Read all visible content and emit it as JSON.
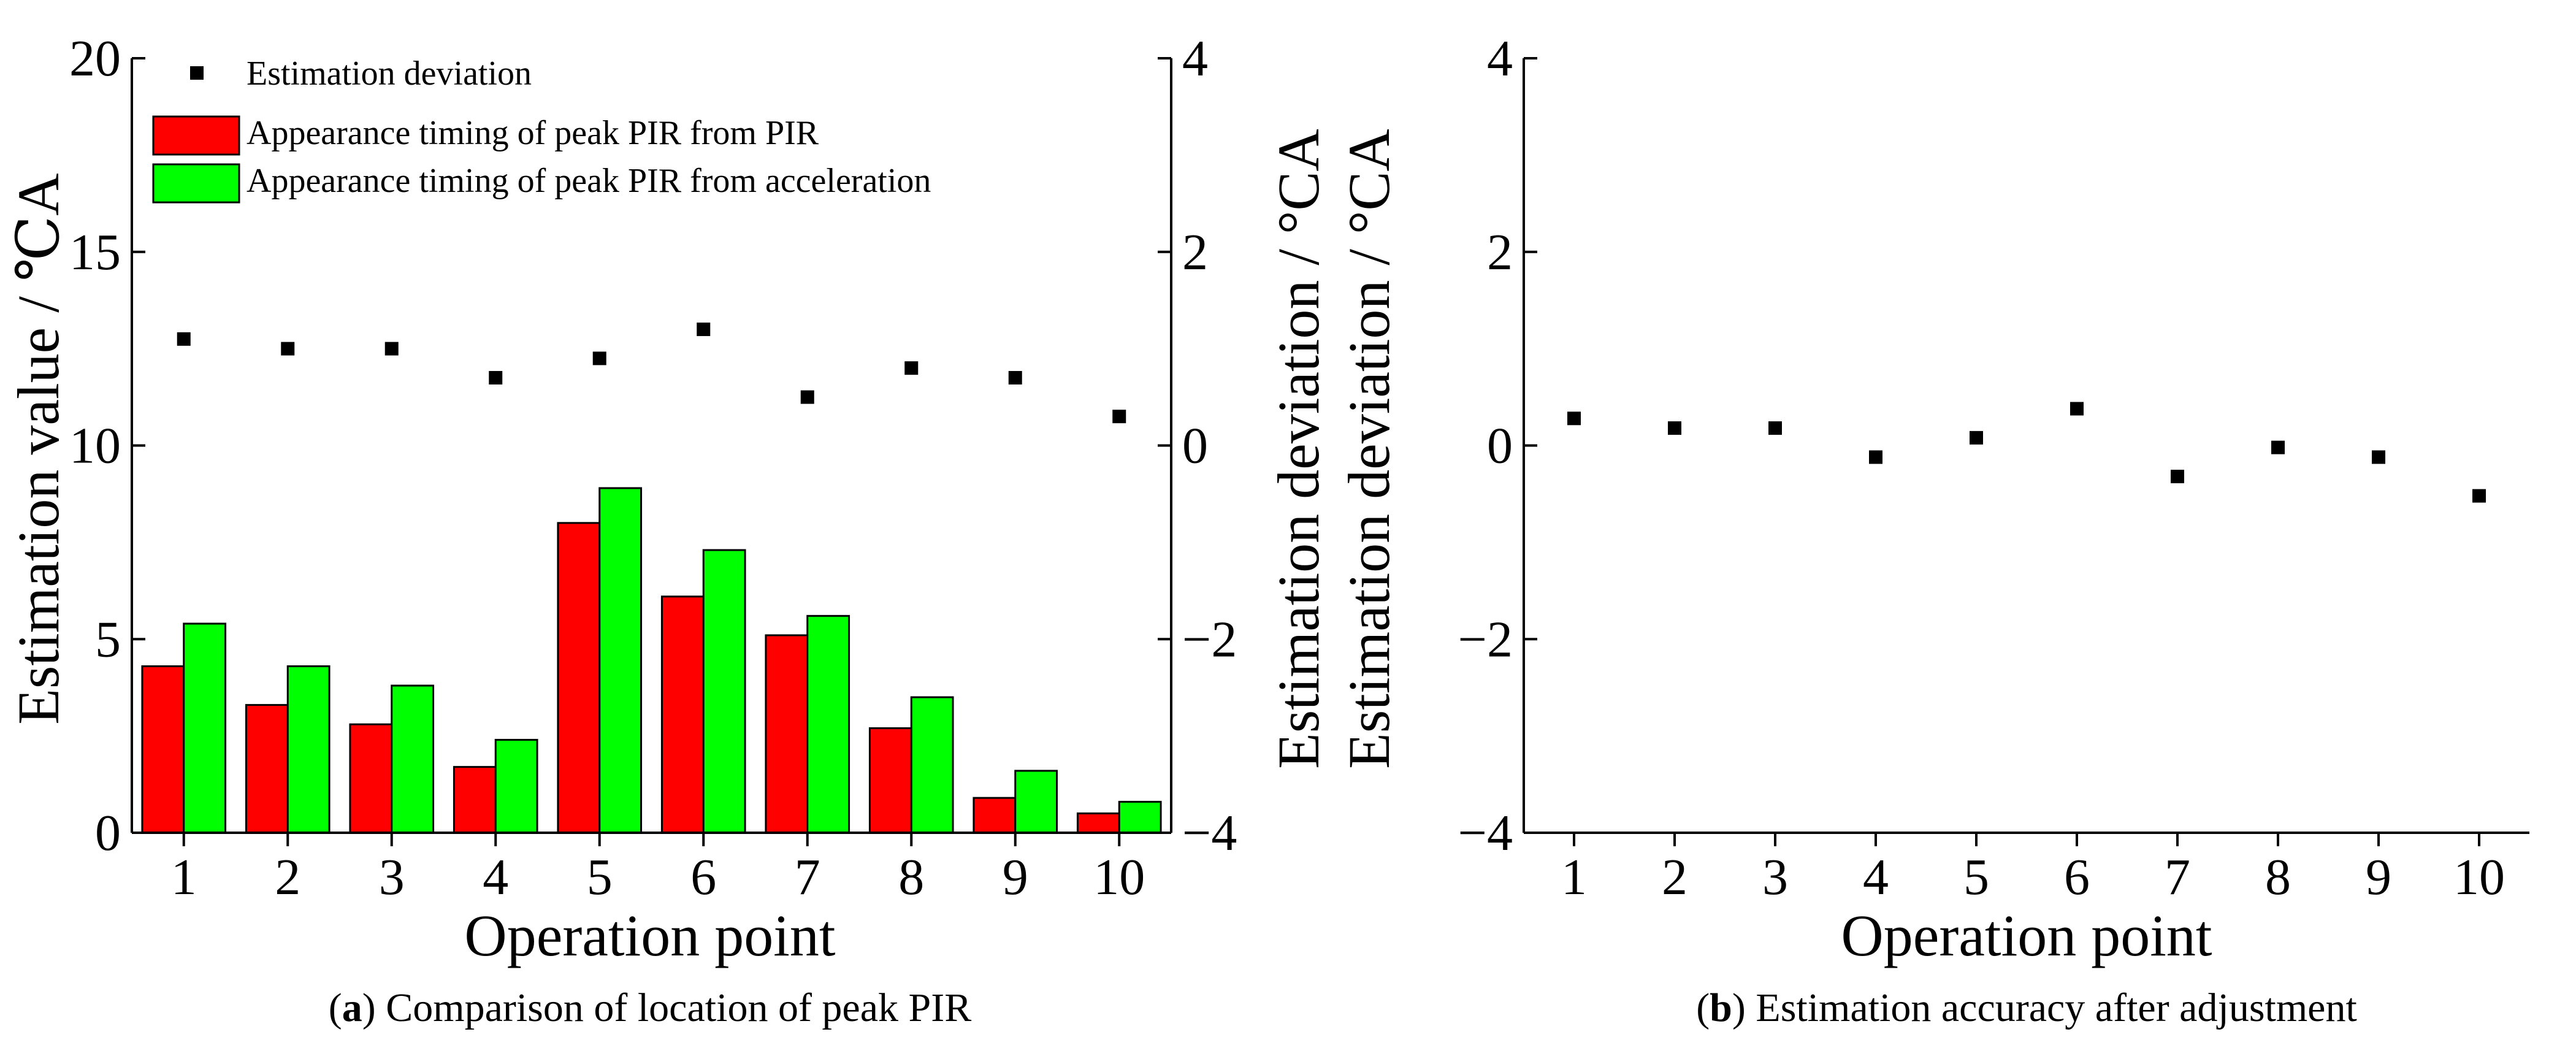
{
  "chart_data": [
    {
      "panel_label": "a",
      "caption": "Comparison of location of peak PIR",
      "type": "bar",
      "xlabel": "Operation point",
      "ylabel": "Estimation value / ℃A",
      "y2label": "Estimation deviation / °CA",
      "categories": [
        "1",
        "2",
        "3",
        "4",
        "5",
        "6",
        "7",
        "8",
        "9",
        "10"
      ],
      "xlim": [
        0.5,
        10.5
      ],
      "ylim": [
        0,
        20
      ],
      "yticks": [
        "0",
        "5",
        "10",
        "15",
        "20"
      ],
      "y2lim": [
        -4,
        4
      ],
      "y2ticks": [
        "−4",
        "−2",
        "0",
        "2",
        "4"
      ],
      "legend_position": "top-left",
      "series": [
        {
          "name": "Estimation deviation",
          "kind": "scatter",
          "axis": "right",
          "color": "#000000",
          "values": [
            1.1,
            1.0,
            1.0,
            0.7,
            0.9,
            1.2,
            0.5,
            0.8,
            0.7,
            0.3
          ]
        },
        {
          "name": "Appearance timing of peak PIR from PIR",
          "kind": "bar",
          "axis": "left",
          "color": "#ff0000",
          "values": [
            4.3,
            3.3,
            2.8,
            1.7,
            8.0,
            6.1,
            5.1,
            2.7,
            0.9,
            0.5
          ]
        },
        {
          "name": "Appearance timing of peak PIR from acceleration",
          "kind": "bar",
          "axis": "left",
          "color": "#00ff00",
          "values": [
            5.4,
            4.3,
            3.8,
            2.4,
            8.9,
            7.3,
            5.6,
            3.5,
            1.6,
            0.8
          ]
        }
      ]
    },
    {
      "panel_label": "b",
      "caption": "Estimation accuracy after adjustment",
      "type": "scatter",
      "xlabel": "Operation point",
      "ylabel": "Estimation deviation / °CA",
      "categories": [
        "1",
        "2",
        "3",
        "4",
        "5",
        "6",
        "7",
        "8",
        "9",
        "10"
      ],
      "xlim": [
        0.5,
        10.5
      ],
      "ylim": [
        -4,
        4
      ],
      "yticks": [
        "−4",
        "−2",
        "0",
        "2",
        "4"
      ],
      "series": [
        {
          "name": "Estimation deviation",
          "color": "#000000",
          "values": [
            0.28,
            0.18,
            0.18,
            -0.12,
            0.08,
            0.38,
            -0.32,
            -0.02,
            -0.12,
            -0.52
          ]
        }
      ]
    }
  ]
}
